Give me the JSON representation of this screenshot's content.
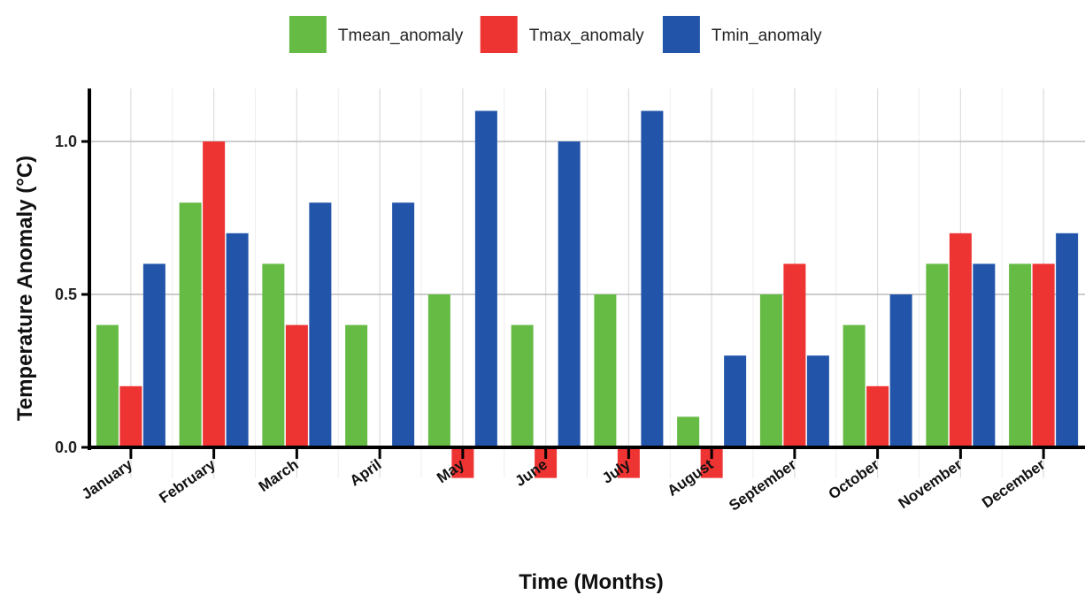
{
  "chart_data": {
    "type": "bar",
    "title": "",
    "xlabel": "Time (Months)",
    "ylabel": "Temperature Anomaly (°C)",
    "ylim": [
      -0.1,
      1.15
    ],
    "yticks": [
      0.0,
      0.5,
      1.0
    ],
    "ytick_labels": [
      "0.0",
      "0.5",
      "1.0"
    ],
    "grid": true,
    "legend_position": "top",
    "categories": [
      "January",
      "February",
      "March",
      "April",
      "May",
      "June",
      "July",
      "August",
      "September",
      "October",
      "November",
      "December"
    ],
    "series": [
      {
        "name": "Tmean_anomaly",
        "color": "#66bb44",
        "values": [
          0.4,
          0.8,
          0.6,
          0.4,
          0.5,
          0.4,
          0.5,
          0.1,
          0.5,
          0.4,
          0.6,
          0.6
        ]
      },
      {
        "name": "Tmax_anomaly",
        "color": "#ee3333",
        "values": [
          0.2,
          1.0,
          0.4,
          0.0,
          -0.1,
          -0.1,
          -0.1,
          -0.1,
          0.6,
          0.2,
          0.7,
          0.6
        ]
      },
      {
        "name": "Tmin_anomaly",
        "color": "#2255aa",
        "values": [
          0.6,
          0.7,
          0.8,
          0.8,
          1.1,
          1.0,
          1.1,
          0.3,
          0.3,
          0.5,
          0.6,
          0.7
        ]
      }
    ]
  }
}
